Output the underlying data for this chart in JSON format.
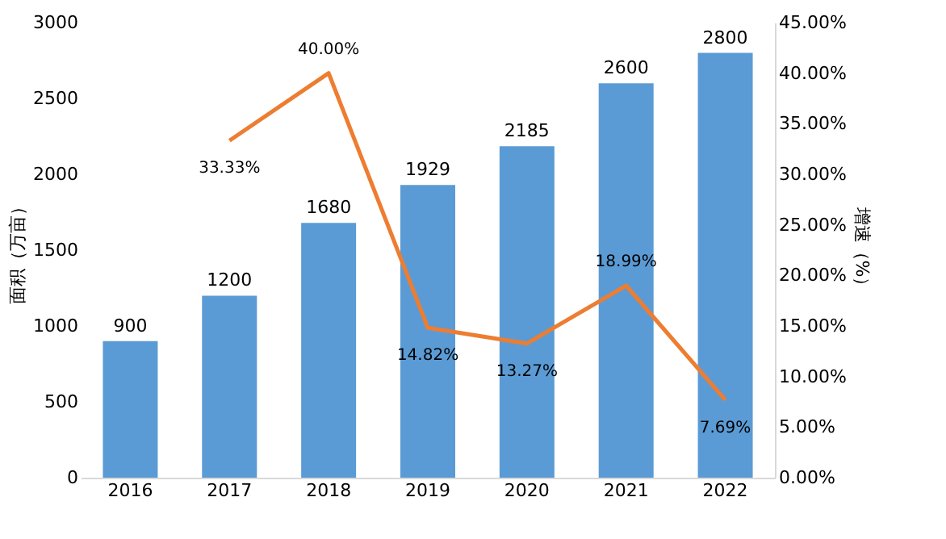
{
  "chart_data": {
    "type": "bar",
    "categories": [
      "2016",
      "2017",
      "2018",
      "2019",
      "2020",
      "2021",
      "2022"
    ],
    "ylabel": "面积（万亩）",
    "y2label": "增速（%）",
    "ylim": [
      0,
      3000
    ],
    "yticks": [
      0,
      500,
      1000,
      1500,
      2000,
      2500,
      3000
    ],
    "y2lim": [
      0,
      45
    ],
    "y2ticks": [
      {
        "value": 0,
        "label": "0.00%"
      },
      {
        "value": 5,
        "label": "5.00%"
      },
      {
        "value": 10,
        "label": "10.00%"
      },
      {
        "value": 15,
        "label": "15.00%"
      },
      {
        "value": 20,
        "label": "20.00%"
      },
      {
        "value": 25,
        "label": "25.00%"
      },
      {
        "value": 30,
        "label": "30.00%"
      },
      {
        "value": 35,
        "label": "35.00%"
      },
      {
        "value": 40,
        "label": "40.00%"
      },
      {
        "value": 45,
        "label": "45.00%"
      }
    ],
    "series": [
      {
        "color": "#5b9bd5",
        "values": [
          900,
          1200,
          1680,
          1929,
          2185,
          2600,
          2800
        ]
      },
      {
        "type": "line",
        "axis": "y2",
        "color": "#ed7d31",
        "values": [
          null,
          33.33,
          40.0,
          14.82,
          13.27,
          18.99,
          7.69
        ],
        "value_labels": [
          null,
          "33.33%",
          "40.00%",
          "14.82%",
          "13.27%",
          "18.99%",
          "7.69%"
        ]
      }
    ],
    "data_labels": true,
    "grid": false
  }
}
